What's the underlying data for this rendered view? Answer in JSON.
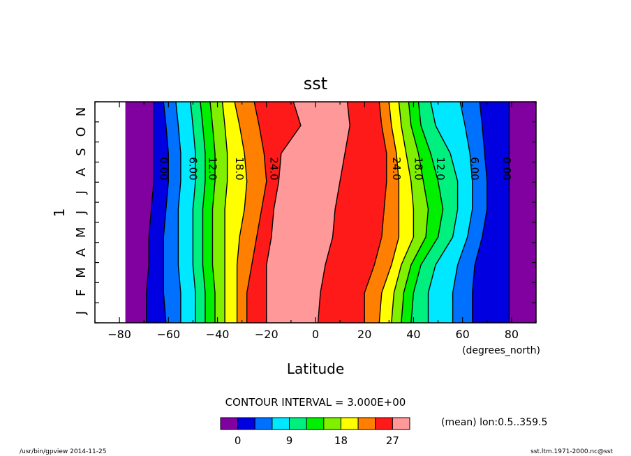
{
  "chart_data": {
    "type": "contour",
    "title": "sst",
    "xlabel": "Latitude",
    "xunits": "(degrees_north)",
    "ylabel": "1",
    "xlim": [
      -90,
      90
    ],
    "x_ticks": [
      -80,
      -60,
      -40,
      -20,
      0,
      20,
      40,
      60,
      80
    ],
    "y_ticks": [
      "J",
      "F",
      "M",
      "A",
      "M",
      "J",
      "J",
      "A",
      "S",
      "O",
      "N"
    ],
    "contour_interval_text": "CONTOUR INTERVAL = 3.000E+00",
    "mean_text": "(mean) lon:0.5..359.5",
    "contour_labels": [
      {
        "text": "0.00",
        "lat": -62
      },
      {
        "text": "6.00",
        "lat": -50
      },
      {
        "text": "12.0",
        "lat": -42
      },
      {
        "text": "18.0",
        "lat": -31
      },
      {
        "text": "24.0",
        "lat": -17
      },
      {
        "text": "24.0",
        "lat": 33
      },
      {
        "text": "18.0",
        "lat": 42
      },
      {
        "text": "12.0",
        "lat": 51
      },
      {
        "text": "6.00",
        "lat": 65
      },
      {
        "text": "0.00",
        "lat": 78
      }
    ],
    "colorbar": {
      "levels": [
        0,
        3,
        6,
        9,
        12,
        15,
        18,
        21,
        24,
        27
      ],
      "labels": [
        "0",
        "9",
        "18",
        "27"
      ],
      "colors": [
        "#8000a0",
        "#0000e0",
        "#0070ff",
        "#00e8ff",
        "#00f080",
        "#00f000",
        "#80f000",
        "#ffff00",
        "#ff8000",
        "#ff1a1a",
        "#ff9898"
      ]
    }
  },
  "footer": {
    "left": "/usr/bin/gpview   2014-11-25",
    "right": "sst.ltm.1971-2000.nc@sst"
  }
}
